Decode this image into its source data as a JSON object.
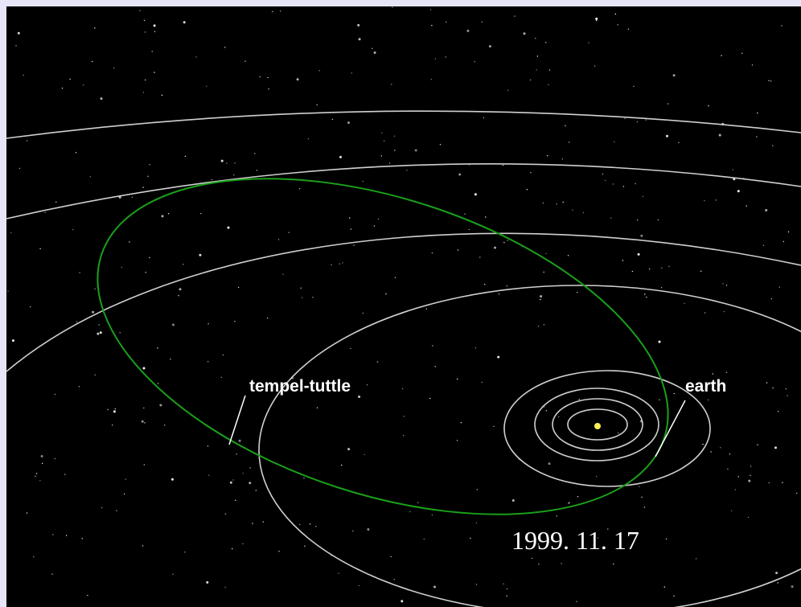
{
  "labels": {
    "comet": "tempel-tuttle",
    "planet": "earth"
  },
  "date": "1999. 11. 17"
}
